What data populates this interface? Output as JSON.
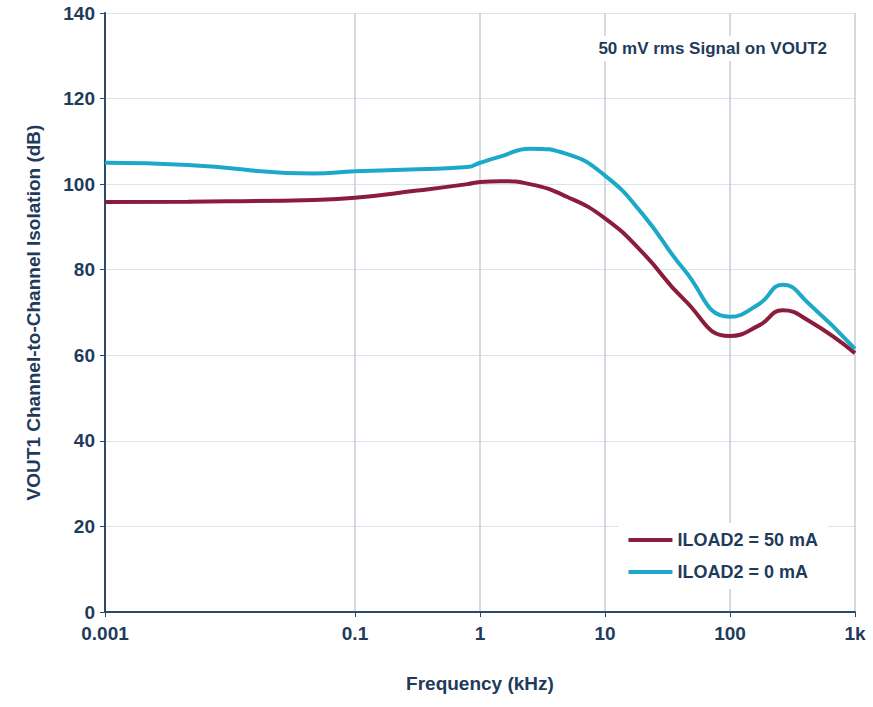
{
  "chart_data": {
    "type": "line",
    "annotation": "50 mV rms Signal on VOUT2",
    "x_label": "Frequency (kHz)",
    "y_label": "VOUT1 Channel-to-Channel Isolation (dB)",
    "log": "x",
    "grid": true,
    "legend": "lower right",
    "xlim": [
      0.001,
      1000
    ],
    "xticks": [
      0.001,
      0.1,
      1,
      10,
      100,
      {
        "value": 1000,
        "label": "1k"
      }
    ],
    "ylim": [
      0,
      140
    ],
    "yticks": [
      0,
      20,
      40,
      60,
      80,
      100,
      120,
      140
    ],
    "x": [
      0.001,
      0.0046,
      0.0464,
      0.1,
      0.316,
      0.794,
      1,
      1.47,
      2.5,
      5,
      10,
      20,
      43,
      100,
      171,
      263,
      430,
      1000
    ],
    "series": [
      {
        "name": "ILOAD2 = 50 mA",
        "color": "#8c1c3c",
        "values": [
          95.8,
          95.9,
          96.3,
          96.8,
          98.5,
          100,
          100.5,
          100.7,
          100,
          97,
          92,
          84,
          73,
          64.5,
          67,
          70.5,
          68,
          60.5
        ]
      },
      {
        "name": "ILOAD2 = 0 mA",
        "color": "#1ca8c9",
        "values": [
          105,
          104.5,
          102.5,
          103,
          103.5,
          104,
          105,
          106.5,
          108.3,
          107,
          102,
          93,
          80,
          69,
          72,
          76.5,
          72,
          61.5
        ]
      }
    ]
  }
}
